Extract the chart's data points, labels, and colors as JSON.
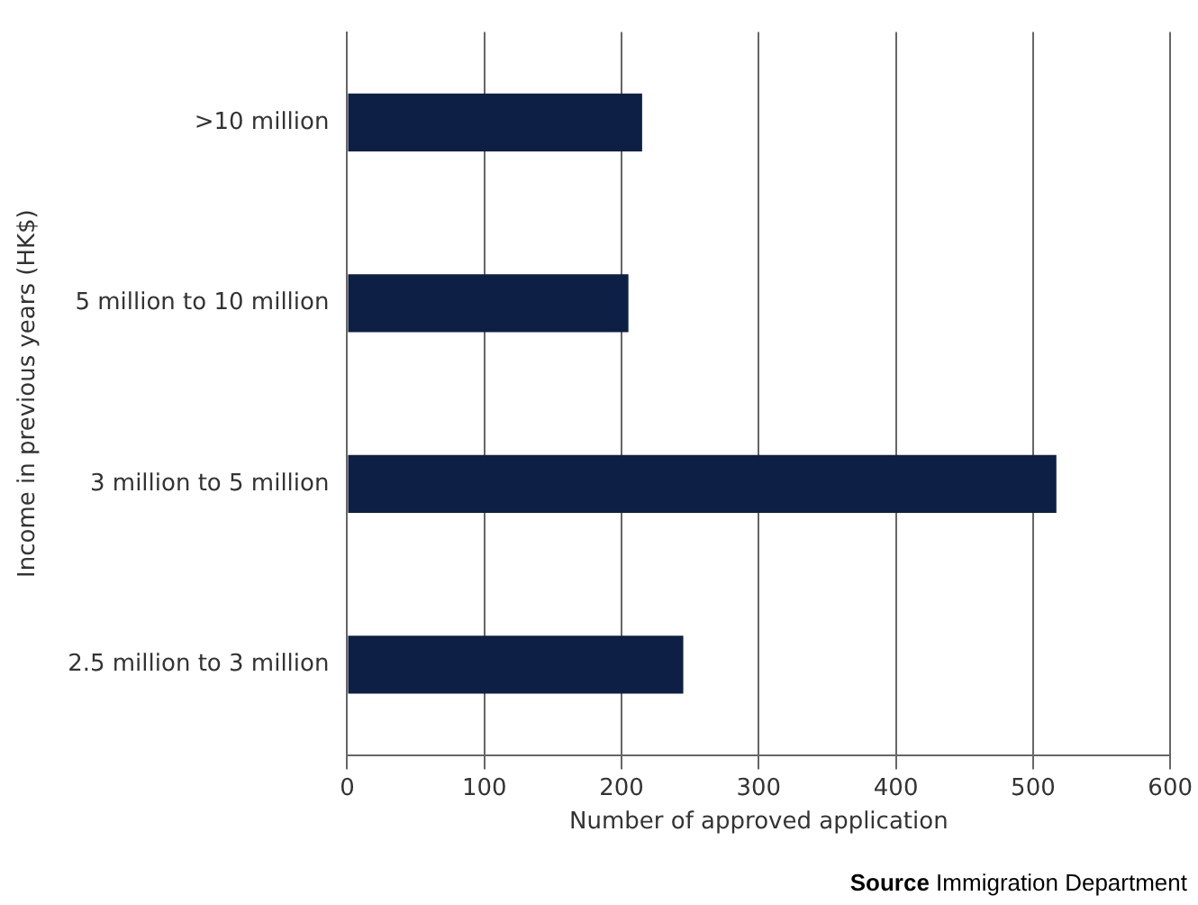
{
  "chart_data": {
    "type": "bar",
    "orientation": "horizontal",
    "xlabel": "Number of approved application",
    "ylabel": "Income in previous years (HK$)",
    "categories": [
      ">10 million",
      "5 million to 10 million",
      "3 million to 5 million",
      "2.5 million to 3 million"
    ],
    "values": [
      215,
      205,
      517,
      245
    ],
    "color": "#0d1f44",
    "xlim": [
      0,
      600
    ],
    "xticks": [
      0,
      100,
      200,
      300,
      400,
      500,
      600
    ],
    "grid": "x",
    "legend": false,
    "annotations": [
      "Source Immigration Department"
    ]
  }
}
